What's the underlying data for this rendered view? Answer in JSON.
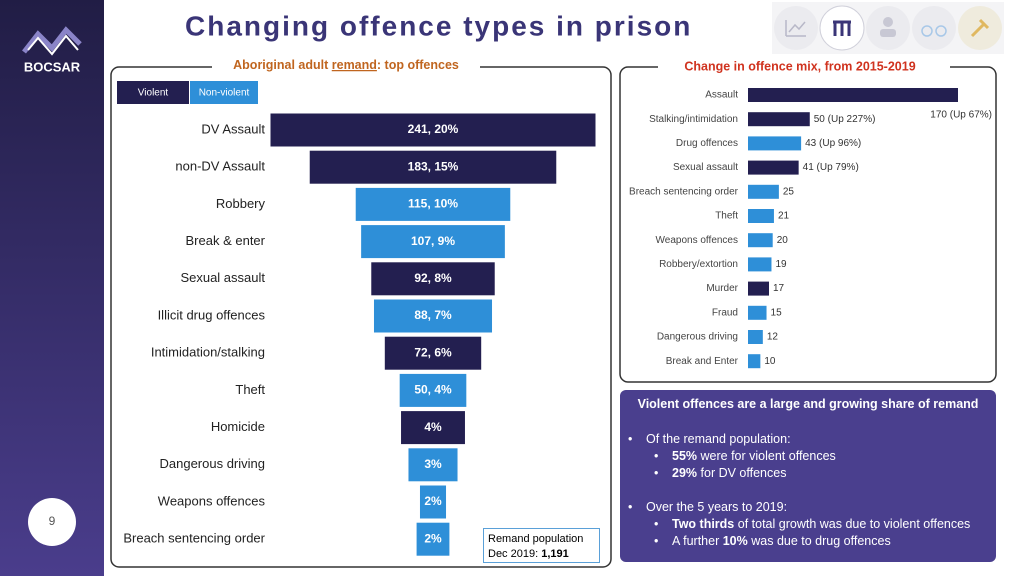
{
  "header": {
    "title": "Changing offence types in prison",
    "logo": "BOCSAR",
    "page_number": "9"
  },
  "chart_data": [
    {
      "type": "funnel",
      "title_parts": [
        "Aboriginal adult ",
        "remand",
        ": top offences"
      ],
      "legend": [
        {
          "name": "Violent",
          "color": "#231f50"
        },
        {
          "name": "Non-violent",
          "color": "#2e8fd8"
        }
      ],
      "categories": [
        "DV Assault",
        "non-DV Assault",
        "Robbery",
        "Break & enter",
        "Sexual assault",
        "Illicit drug offences",
        "Intimidation/stalking",
        "Theft",
        "Homicide",
        "Dangerous driving",
        "Weapons offences",
        "Breach sentencing order"
      ],
      "violent": [
        true,
        true,
        false,
        false,
        true,
        false,
        true,
        false,
        true,
        false,
        false,
        false
      ],
      "values": [
        241,
        183,
        115,
        107,
        92,
        88,
        72,
        50,
        48,
        37,
        20,
        25
      ],
      "percents": [
        20,
        15,
        10,
        9,
        8,
        7,
        6,
        4,
        4,
        3,
        2,
        2
      ],
      "value_labels": [
        "241,  20%",
        "183,  15%",
        "115, 10%",
        "107, 9%",
        "92, 8%",
        "88, 7%",
        "72, 6%",
        "50, 4%",
        "4%",
        "3%",
        "2%",
        "2%"
      ],
      "note": {
        "line1": "Remand population",
        "line2": "Dec 2019: ",
        "bold": "1,191"
      }
    },
    {
      "type": "hbar",
      "title": "Change in offence mix, from 2015-2019",
      "categories": [
        "Assault",
        "Stalking/intimidation",
        "Drug offences",
        "Sexual assault",
        "Breach sentencing order",
        "Theft",
        "Weapons offences",
        "Robbery/extortion",
        "Murder",
        "Fraud",
        "Dangerous driving",
        "Break and Enter"
      ],
      "violent": [
        true,
        true,
        false,
        true,
        false,
        false,
        false,
        false,
        true,
        false,
        false,
        false
      ],
      "values": [
        170,
        50,
        43,
        41,
        25,
        21,
        20,
        19,
        17,
        15,
        12,
        10
      ],
      "value_labels": [
        "170 (Up 67%)",
        "50 (Up 227%)",
        "43 (Up 96%)",
        "41 (Up 79%)",
        "25",
        "21",
        "20",
        "19",
        "17",
        "15",
        "12",
        "10"
      ],
      "colors": {
        "violent": "#231f50",
        "other": "#2e8fd8"
      }
    }
  ],
  "box": {
    "title": "Violent offences are a large and growing share of remand",
    "bullets": [
      {
        "text": "Of the remand population:",
        "sub": [
          {
            "bold": "55%",
            "text": "were for violent offences"
          },
          {
            "bold": "29%",
            "text": "for DV offences"
          }
        ]
      },
      {
        "text": "Over the 5 years to 2019:",
        "sub": [
          {
            "bold": "Two thirds",
            "text": "of total growth was due to violent offences"
          },
          {
            "pre": "A further",
            "bold": "10%",
            "text": "was due to drug offences"
          }
        ]
      }
    ]
  }
}
